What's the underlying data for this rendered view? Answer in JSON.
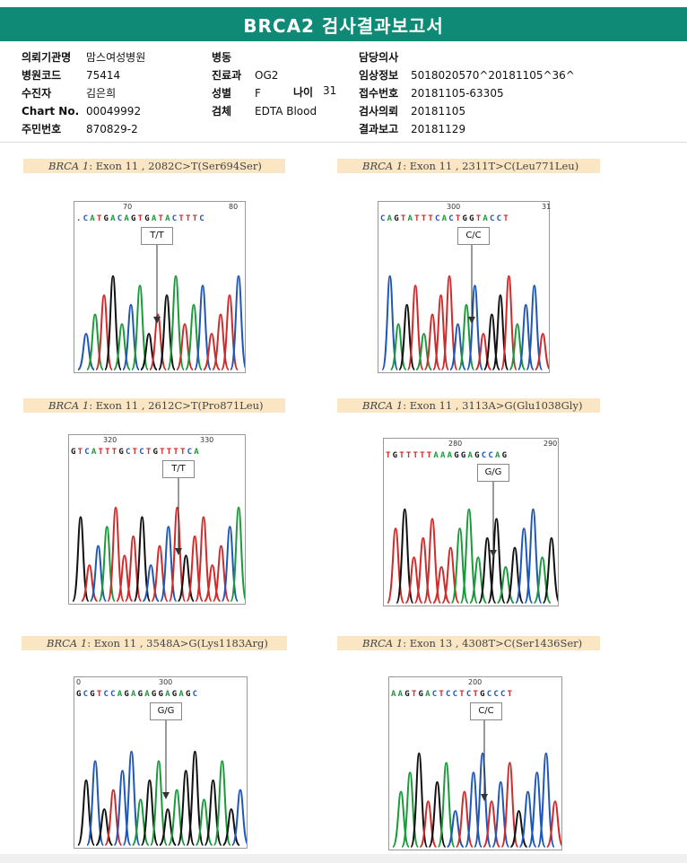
{
  "report": {
    "title": "BRCA2 검사결과보고서"
  },
  "info": {
    "col1": [
      {
        "label": "의뢰기관명",
        "value": "맘스여성병원"
      },
      {
        "label": "병원코드",
        "value": "75414"
      },
      {
        "label": "수진자",
        "value": "김은희"
      },
      {
        "label": "Chart No.",
        "value": "00049992"
      },
      {
        "label": "주민번호",
        "value": "870829-2"
      }
    ],
    "col2": [
      {
        "label": "병동",
        "value": ""
      },
      {
        "label": "진료과",
        "value": "OG2"
      },
      {
        "label": "성별",
        "value": "F"
      },
      {
        "label": "검체",
        "value": "EDTA Blood"
      }
    ],
    "age": {
      "label": "나이",
      "value": "31"
    },
    "col3": [
      {
        "label": "담당의사",
        "value": ""
      },
      {
        "label": "임상정보",
        "value": "5018020570^20181105^36^"
      },
      {
        "label": "접수번호",
        "value": "20181105-63305"
      },
      {
        "label": "검사의뢰",
        "value": "20181105"
      },
      {
        "label": "결과보고",
        "value": "20181129"
      }
    ]
  },
  "panels": [
    {
      "gene": "BRCA 1",
      "variant": ": Exon 11 , 2082C>T(Ser694Ser)",
      "genotype": "T/T",
      "sequence": ".CATGACAGTGATACTTTC",
      "positions": [
        "70",
        "80"
      ]
    },
    {
      "gene": "BRCA 1",
      "variant": ": Exon 11 , 2311T>C(Leu771Leu)",
      "genotype": "C/C",
      "sequence": "CAGTATTTCACTGGTACCT",
      "positions": [
        "300",
        "31"
      ]
    },
    {
      "gene": "BRCA 1",
      "variant": ": Exon 11 , 2612C>T(Pro871Leu)",
      "genotype": "T/T",
      "sequence": "GTCATTTGCTCTGTTTTCA",
      "positions": [
        "320",
        "330"
      ]
    },
    {
      "gene": "BRCA 1",
      "variant": ": Exon 11 , 3113A>G(Glu1038Gly)",
      "genotype": "G/G",
      "sequence": "TGTTTTTAAAGGAGCCAG",
      "positions": [
        "280",
        "290"
      ]
    },
    {
      "gene": "BRCA 1",
      "variant": ": Exon 11 , 3548A>G(Lys1183Arg)",
      "genotype": "G/G",
      "sequence": "GCGTCCAGAGAGGAGAGC",
      "positions": [
        "0",
        "300"
      ]
    },
    {
      "gene": "BRCA 1",
      "variant": ": Exon 13 , 4308T>C(Ser1436Ser)",
      "genotype": "C/C",
      "sequence": "AAGTGACTCCTCTGCCCT",
      "positions": [
        "200"
      ]
    }
  ],
  "colors": {
    "header_bg": "#0f8a76",
    "caption_bg": "#fbe6c4",
    "base_A": "#1a9a3a",
    "base_C": "#1f57b8",
    "base_G": "#111111",
    "base_T": "#d02a2a"
  }
}
